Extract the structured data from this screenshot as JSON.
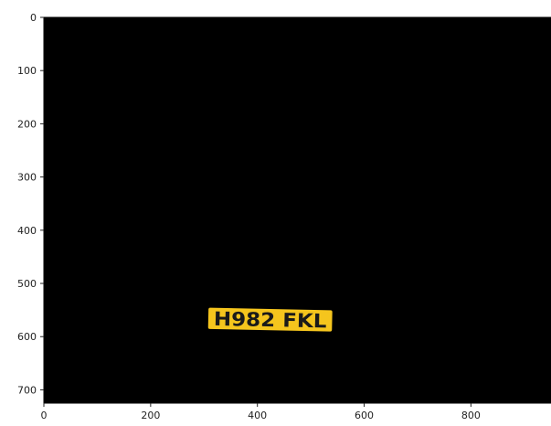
{
  "chart_data": {
    "type": "image",
    "title": "",
    "xlabel": "",
    "ylabel": "",
    "xlim": [
      0,
      950
    ],
    "ylim": [
      725,
      0
    ],
    "x_ticks": [
      0,
      200,
      400,
      600,
      800
    ],
    "y_ticks": [
      0,
      100,
      200,
      300,
      400,
      500,
      600,
      700
    ],
    "grid": false,
    "background_color": "#000000",
    "plate": {
      "text": "H982 FKL",
      "x_range": [
        308,
        540
      ],
      "y_range": [
        548,
        588
      ],
      "fill": "#f5c51d",
      "text_color": "#1a1a1a"
    }
  }
}
